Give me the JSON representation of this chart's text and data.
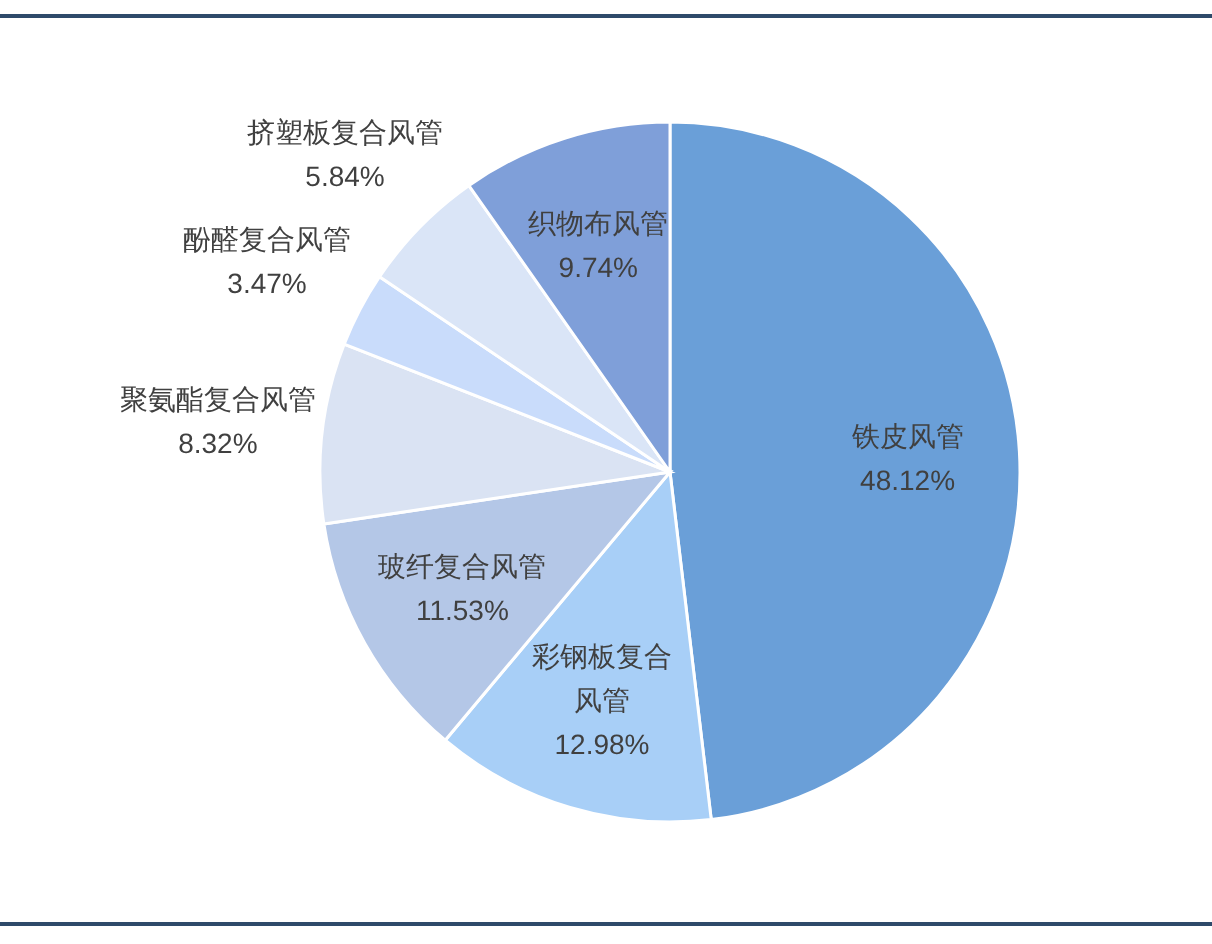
{
  "chart_data": {
    "type": "pie",
    "categories": [
      "铁皮风管",
      "彩钢板复合风管",
      "玻纤复合风管",
      "聚氨酯复合风管",
      "酚醛复合风管",
      "挤塑板复合风管",
      "织物布风管"
    ],
    "values": [
      48.12,
      12.98,
      11.53,
      8.32,
      3.47,
      5.84,
      9.74
    ],
    "value_labels": [
      "48.12%",
      "12.98%",
      "11.53%",
      "8.32%",
      "3.47%",
      "5.84%",
      "9.74%"
    ],
    "colors": [
      "#6a9fd8",
      "#a8cff7",
      "#b4c7e7",
      "#dae3f3",
      "#c9dcfb",
      "#dae5f7",
      "#7f9fd9"
    ],
    "legend": false
  }
}
